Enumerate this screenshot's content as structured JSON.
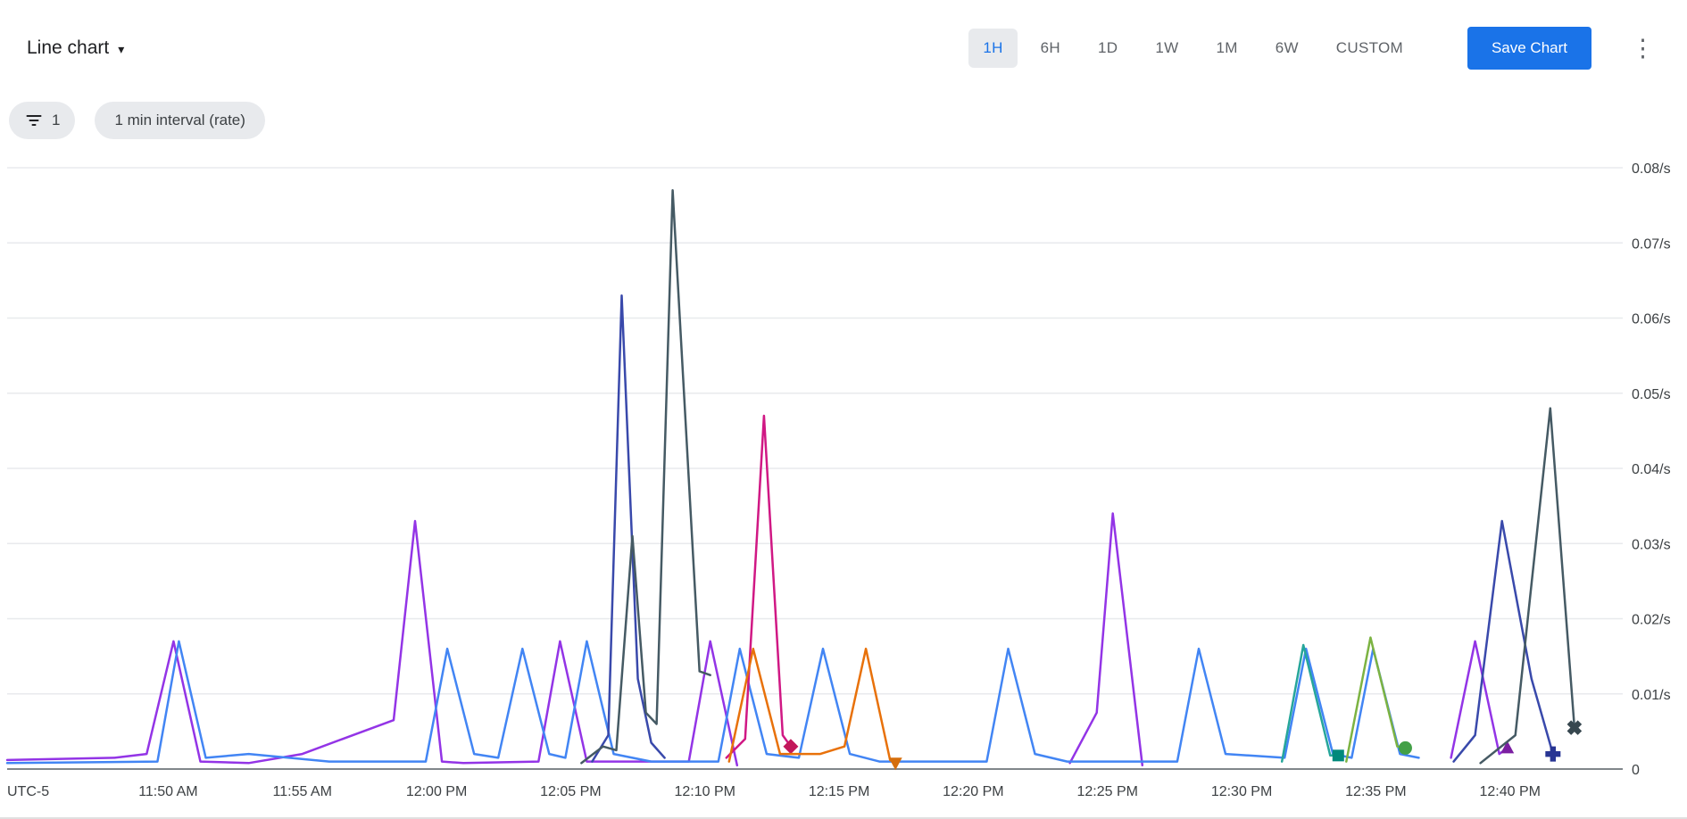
{
  "header": {
    "chart_type_label": "Line chart",
    "dropdown_icon": "▾",
    "time_ranges": [
      "1H",
      "6H",
      "1D",
      "1W",
      "1M",
      "6W",
      "CUSTOM"
    ],
    "selected_time_range": "1H",
    "save_button_label": "Save Chart",
    "overflow_menu_icon": "⋮"
  },
  "filter_bar": {
    "filter_icon": "filter-list",
    "filter_count": "1",
    "interval_chip_label": "1 min interval (rate)"
  },
  "colors": {
    "accent_blue": "#1A73E8",
    "selected_range_bg": "#E8EAED",
    "chip_bg": "#E8EAED",
    "grid_line": "#E8EAED",
    "axis_line": "#80868B",
    "axis_text": "#3C4043"
  },
  "chart_data": {
    "type": "line",
    "title": "",
    "legend": "none",
    "grid": "horizontal",
    "y_axis": {
      "min": 0,
      "max": 0.08,
      "grid_step": 0.01,
      "unit": "/s",
      "side": "right",
      "tick_values": [
        0,
        0.01,
        0.02,
        0.03,
        0.04,
        0.05,
        0.06,
        0.07,
        0.08
      ],
      "tick_labels": [
        "0",
        "0.01/s",
        "0.02/s",
        "0.03/s",
        "0.04/s",
        "0.05/s",
        "0.06/s",
        "0.07/s",
        "0.08/s"
      ]
    },
    "x_axis": {
      "timezone": "UTC-5",
      "note": "t values are minutes-of-day (11:44 AM = 704, 12:44 PM = 764)",
      "start": 704,
      "end": 764.2,
      "ticks": [
        {
          "t": 710,
          "label": "11:50 AM"
        },
        {
          "t": 715,
          "label": "11:55 AM"
        },
        {
          "t": 720,
          "label": "12:00 PM"
        },
        {
          "t": 725,
          "label": "12:05 PM"
        },
        {
          "t": 730,
          "label": "12:10 PM"
        },
        {
          "t": 735,
          "label": "12:15 PM"
        },
        {
          "t": 740,
          "label": "12:20 PM"
        },
        {
          "t": 745,
          "label": "12:25 PM"
        },
        {
          "t": 750,
          "label": "12:30 PM"
        },
        {
          "t": 755,
          "label": "12:35 PM"
        },
        {
          "t": 760,
          "label": "12:40 PM"
        }
      ]
    },
    "series": [
      {
        "id": "purple",
        "color": "#9334E6",
        "marker": "triangle-up",
        "marker_color": "#7B1FA2",
        "segments": [
          [
            [
              704,
              0.0012
            ],
            [
              708,
              0.0015
            ],
            [
              709.2,
              0.002
            ],
            [
              710.2,
              0.017
            ],
            [
              711.2,
              0.001
            ],
            [
              713,
              0.0008
            ],
            [
              715,
              0.002
            ],
            [
              716.5,
              0.004
            ],
            [
              718.4,
              0.0065
            ],
            [
              719.2,
              0.033
            ],
            [
              720.2,
              0.001
            ],
            [
              721,
              0.0008
            ],
            [
              723.8,
              0.001
            ],
            [
              724.6,
              0.017
            ],
            [
              725.6,
              0.001
            ],
            [
              729.4,
              0.001
            ],
            [
              730.2,
              0.017
            ],
            [
              731.2,
              0.0005
            ]
          ],
          [
            [
              743.6,
              0.0008
            ],
            [
              744.6,
              0.0075
            ],
            [
              745.2,
              0.034
            ],
            [
              746.3,
              0.0005
            ]
          ],
          [
            [
              757.8,
              0.0015
            ],
            [
              758.7,
              0.017
            ],
            [
              759.6,
              0.002
            ],
            [
              759.9,
              0.0028
            ]
          ]
        ]
      },
      {
        "id": "blue",
        "color": "#4285F4",
        "marker": null,
        "segments": [
          [
            [
              704,
              0.0008
            ],
            [
              709.6,
              0.001
            ],
            [
              710.4,
              0.017
            ],
            [
              711.4,
              0.0015
            ],
            [
              713,
              0.002
            ],
            [
              716,
              0.001
            ],
            [
              719.6,
              0.001
            ],
            [
              720.4,
              0.016
            ],
            [
              721.4,
              0.002
            ],
            [
              722.3,
              0.0015
            ],
            [
              723.2,
              0.016
            ],
            [
              724.2,
              0.002
            ],
            [
              724.8,
              0.0015
            ],
            [
              725.6,
              0.017
            ],
            [
              726.6,
              0.002
            ],
            [
              728,
              0.001
            ],
            [
              730.5,
              0.001
            ],
            [
              731.3,
              0.016
            ],
            [
              732.3,
              0.002
            ],
            [
              733.5,
              0.0015
            ],
            [
              734.4,
              0.016
            ],
            [
              735.4,
              0.002
            ],
            [
              736.5,
              0.001
            ],
            [
              740.5,
              0.001
            ],
            [
              741.3,
              0.016
            ],
            [
              742.3,
              0.002
            ],
            [
              743.5,
              0.001
            ],
            [
              747.6,
              0.001
            ],
            [
              748.4,
              0.016
            ],
            [
              749.4,
              0.002
            ],
            [
              751.6,
              0.0015
            ],
            [
              752.4,
              0.016
            ],
            [
              753.4,
              0.002
            ],
            [
              754.1,
              0.0015
            ],
            [
              754.9,
              0.016
            ],
            [
              755.9,
              0.002
            ],
            [
              756.6,
              0.0015
            ]
          ]
        ]
      },
      {
        "id": "indigo",
        "color": "#3949AB",
        "marker": "plus",
        "marker_color": "#283593",
        "segments": [
          [
            [
              725.8,
              0.001
            ],
            [
              726.4,
              0.0045
            ],
            [
              726.9,
              0.063
            ],
            [
              727.5,
              0.012
            ],
            [
              728,
              0.0035
            ],
            [
              728.5,
              0.0015
            ]
          ],
          [
            [
              757.9,
              0.001
            ],
            [
              758.7,
              0.0045
            ],
            [
              759.7,
              0.033
            ],
            [
              760.8,
              0.012
            ],
            [
              761.6,
              0.002
            ]
          ]
        ]
      },
      {
        "id": "slate",
        "color": "#455A64",
        "marker": "x",
        "marker_color": "#37474F",
        "segments": [
          [
            [
              725.4,
              0.0008
            ],
            [
              726.2,
              0.003
            ],
            [
              726.7,
              0.0025
            ],
            [
              727.3,
              0.031
            ],
            [
              727.8,
              0.0075
            ],
            [
              728.2,
              0.006
            ],
            [
              728.8,
              0.077
            ],
            [
              729.8,
              0.013
            ],
            [
              730.2,
              0.0125
            ]
          ],
          [
            [
              758.9,
              0.0008
            ],
            [
              760.2,
              0.0045
            ],
            [
              761.5,
              0.048
            ],
            [
              762.4,
              0.0055
            ]
          ]
        ]
      },
      {
        "id": "magenta",
        "color": "#D01884",
        "marker": "diamond",
        "marker_color": "#C2185B",
        "segments": [
          [
            [
              730.8,
              0.0015
            ],
            [
              731.5,
              0.004
            ],
            [
              732.2,
              0.047
            ],
            [
              732.9,
              0.0045
            ],
            [
              733.2,
              0.003
            ]
          ]
        ]
      },
      {
        "id": "orange",
        "color": "#E8710A",
        "marker": "triangle-down",
        "marker_color": "#D56E0C",
        "segments": [
          [
            [
              730.9,
              0.001
            ],
            [
              731.8,
              0.016
            ],
            [
              732.8,
              0.002
            ],
            [
              734.3,
              0.002
            ],
            [
              735.2,
              0.003
            ],
            [
              736,
              0.016
            ],
            [
              736.9,
              0.0012
            ],
            [
              737.1,
              0.0008
            ]
          ]
        ]
      },
      {
        "id": "teal",
        "color": "#26A69A",
        "marker": "square",
        "marker_color": "#00897B",
        "segments": [
          [
            [
              751.5,
              0.001
            ],
            [
              752.3,
              0.0165
            ],
            [
              753.3,
              0.0018
            ],
            [
              753.6,
              0.0018
            ]
          ]
        ]
      },
      {
        "id": "green",
        "color": "#7CB342",
        "marker": "circle",
        "marker_color": "#43A047",
        "segments": [
          [
            [
              753.9,
              0.001
            ],
            [
              754.8,
              0.0175
            ],
            [
              755.8,
              0.003
            ],
            [
              756.1,
              0.0028
            ]
          ]
        ]
      }
    ]
  }
}
